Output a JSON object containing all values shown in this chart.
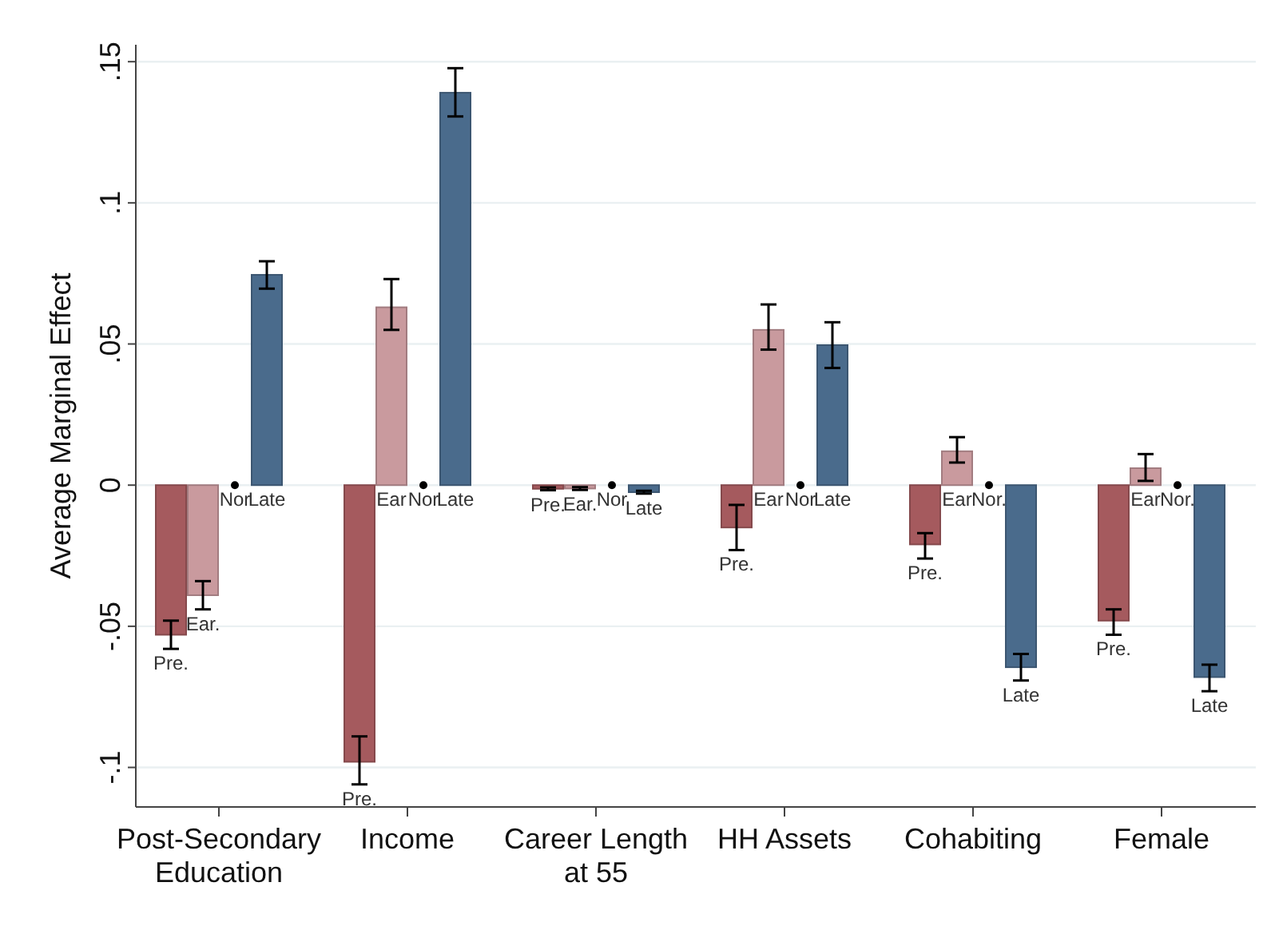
{
  "chart_data": {
    "type": "bar",
    "ylabel": "Average Marginal Effect",
    "categories": [
      "Post-Secondary\nEducation",
      "Income",
      "Career Length\nat 55",
      "HH Assets",
      "Cohabiting",
      "Female"
    ],
    "ylim": [
      -0.114,
      0.156
    ],
    "yticks": [
      {
        "value": 0.15,
        "label": ".15"
      },
      {
        "value": 0.1,
        "label": ".1"
      },
      {
        "value": 0.05,
        "label": ".05"
      },
      0,
      {
        "value": -0.05,
        "label": "-.05"
      },
      {
        "value": -0.1,
        "label": "-.1"
      }
    ],
    "grid": "y",
    "series": [
      {
        "color": "#a55a5e",
        "values": [
          -0.053,
          -0.098,
          -0.0013,
          -0.015,
          -0.021,
          -0.048
        ],
        "errors": [
          [
            -0.058,
            -0.048
          ],
          [
            -0.106,
            -0.089
          ],
          [
            -0.0018,
            -0.0008
          ],
          [
            -0.023,
            -0.007
          ],
          [
            -0.026,
            -0.017
          ],
          [
            -0.053,
            -0.044
          ]
        ],
        "value_labels": [
          "Pre.",
          "Pre.",
          "Pre.",
          "Pre.",
          "Pre.",
          "Pre."
        ]
      },
      {
        "color": "#c99a9e",
        "values": [
          -0.039,
          0.063,
          -0.0012,
          0.055,
          0.012,
          0.006
        ],
        "errors": [
          [
            -0.044,
            -0.034
          ],
          [
            0.055,
            0.073
          ],
          [
            -0.0017,
            -0.0007
          ],
          [
            0.048,
            0.064
          ],
          [
            0.008,
            0.017
          ],
          [
            0.0015,
            0.011
          ]
        ],
        "value_labels": [
          "Ear.",
          "Ear",
          "Ear.",
          "Ear",
          "Ear",
          "Ear"
        ]
      },
      {
        "type": "scatter",
        "marker": "circle",
        "color": "#000000",
        "values": [
          0,
          0,
          0,
          0,
          0,
          0
        ],
        "value_labels": [
          "Nor",
          "Nor",
          "Nor",
          "Nor",
          "Nor.",
          "Nor."
        ]
      },
      {
        "color": "#4a6b8c",
        "values": [
          0.0745,
          0.139,
          -0.0025,
          0.0496,
          -0.0645,
          -0.068
        ],
        "errors": [
          [
            0.0696,
            0.0793
          ],
          [
            0.1306,
            0.1477
          ],
          [
            -0.003,
            -0.002
          ],
          [
            0.0415,
            0.0577
          ],
          [
            -0.0692,
            -0.0598
          ],
          [
            -0.073,
            -0.0636
          ]
        ],
        "value_labels": [
          "Late",
          "Late",
          "Late",
          "Late",
          "Late",
          "Late"
        ]
      }
    ]
  }
}
